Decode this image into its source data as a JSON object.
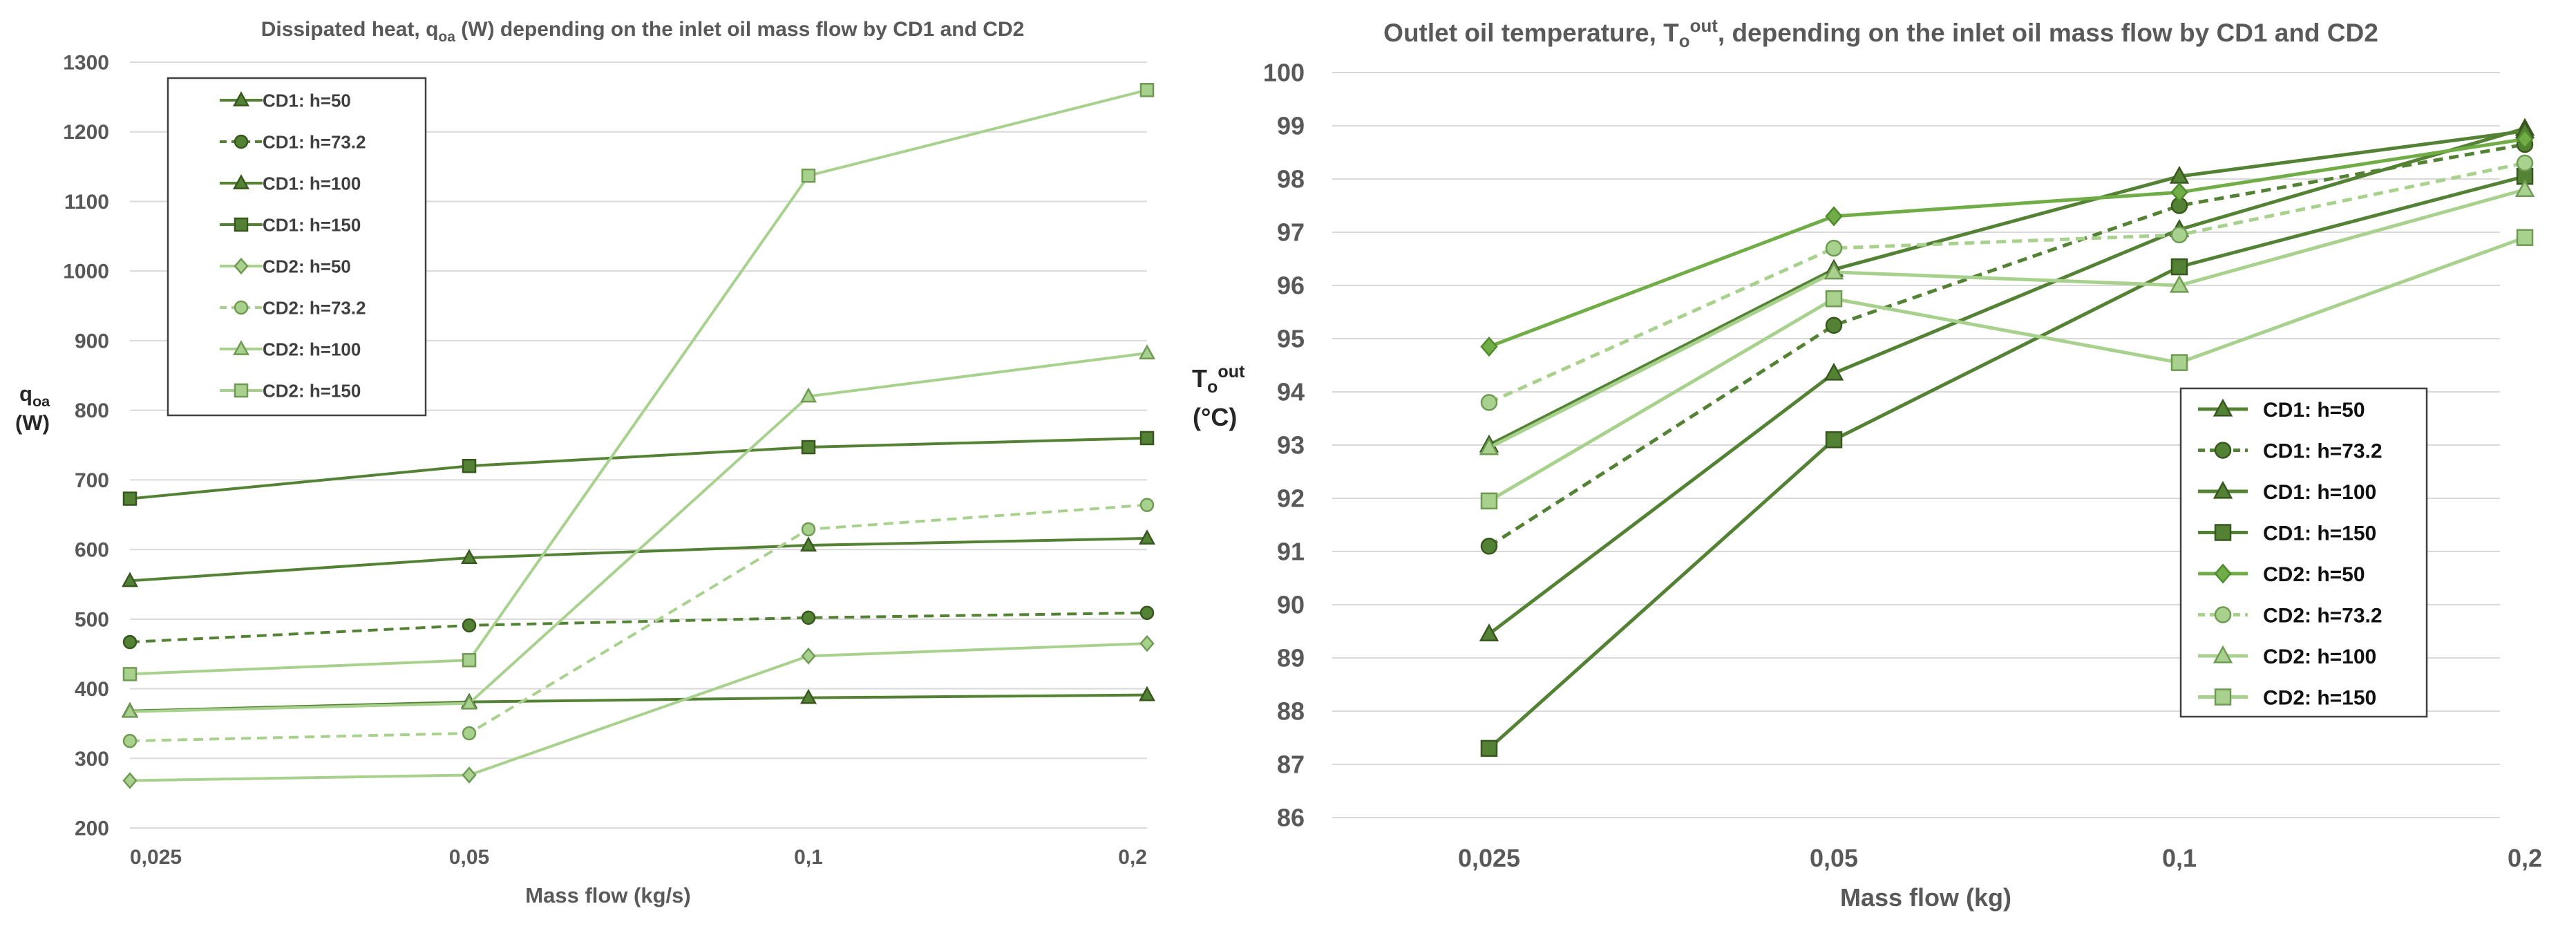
{
  "chart_data": [
    {
      "type": "line",
      "title_parts": [
        "Dissipated heat, q",
        "oa",
        " (W) depending on the inlet oil mass flow by CD1 and CD2"
      ],
      "ylabel_parts": [
        "q",
        "oa"
      ],
      "ylabel_unit": "(W)",
      "xlabel": "Mass flow (kg/s)",
      "categories": [
        "0,025",
        "0,05",
        "0,1",
        "0,2"
      ],
      "ylim": [
        200,
        1300
      ],
      "yticks": [
        200,
        300,
        400,
        500,
        600,
        700,
        800,
        900,
        1000,
        1100,
        1200,
        1300
      ],
      "grid": true,
      "legend_position": "top-left",
      "series": [
        {
          "name": "CD1: h=50",
          "values": [
            368,
            381,
            387,
            391
          ],
          "color": "#548235",
          "dashed": false,
          "marker": "triangle"
        },
        {
          "name": "CD1: h=73.2",
          "values": [
            467,
            491,
            502,
            509
          ],
          "color": "#548235",
          "dashed": true,
          "marker": "circle"
        },
        {
          "name": "CD1: h=100",
          "values": [
            555,
            588,
            606,
            616
          ],
          "color": "#548235",
          "dashed": false,
          "marker": "triangle"
        },
        {
          "name": "CD1: h=150",
          "values": [
            673,
            720,
            747,
            760
          ],
          "color": "#548235",
          "dashed": false,
          "marker": "square"
        },
        {
          "name": "CD2: h=50",
          "values": [
            268,
            276,
            447,
            465
          ],
          "color": "#a9d18e",
          "dashed": false,
          "marker": "diamond"
        },
        {
          "name": "CD2: h=73.2",
          "values": [
            325,
            336,
            629,
            664
          ],
          "color": "#a9d18e",
          "dashed": true,
          "marker": "circle"
        },
        {
          "name": "CD2: h=100",
          "values": [
            367,
            379,
            820,
            882
          ],
          "color": "#a9d18e",
          "dashed": false,
          "marker": "triangle"
        },
        {
          "name": "CD2: h=150",
          "values": [
            421,
            441,
            1137,
            1260
          ],
          "color": "#a9d18e",
          "dashed": false,
          "marker": "square"
        }
      ]
    },
    {
      "type": "line",
      "title_parts": [
        "Outlet oil temperature, T",
        "o",
        "out",
        ", depending on the inlet oil mass flow by CD1 and CD2"
      ],
      "ylabel_parts": [
        "T",
        "o",
        "out"
      ],
      "ylabel_unit": "(°C)",
      "xlabel": "Mass flow (kg)",
      "categories": [
        "0,025",
        "0,05",
        "0,1",
        "0,2"
      ],
      "ylim": [
        86,
        100
      ],
      "yticks": [
        86,
        87,
        88,
        89,
        90,
        91,
        92,
        93,
        94,
        95,
        96,
        97,
        98,
        99,
        100
      ],
      "grid": true,
      "legend_position": "bottom-right",
      "series": [
        {
          "name": "CD1: h=50",
          "values": [
            89.45,
            94.35,
            97.05,
            98.95
          ],
          "color": "#548235",
          "dashed": false,
          "marker": "triangle"
        },
        {
          "name": "CD1: h=73.2",
          "values": [
            91.1,
            95.25,
            97.5,
            98.65
          ],
          "color": "#548235",
          "dashed": true,
          "marker": "circle"
        },
        {
          "name": "CD1: h=100",
          "values": [
            93.0,
            96.3,
            98.05,
            98.9
          ],
          "color": "#548235",
          "dashed": false,
          "marker": "triangle"
        },
        {
          "name": "CD1: h=150",
          "values": [
            87.3,
            93.1,
            96.35,
            98.05
          ],
          "color": "#548235",
          "dashed": false,
          "marker": "square"
        },
        {
          "name": "CD2: h=50",
          "values": [
            94.85,
            97.3,
            97.75,
            98.75
          ],
          "color": "#70ad47",
          "dashed": false,
          "marker": "diamond"
        },
        {
          "name": "CD2: h=73.2",
          "values": [
            93.8,
            96.7,
            96.95,
            98.3
          ],
          "color": "#a9d18e",
          "dashed": true,
          "marker": "circle"
        },
        {
          "name": "CD2: h=100",
          "values": [
            92.95,
            96.25,
            96.0,
            97.8
          ],
          "color": "#a9d18e",
          "dashed": false,
          "marker": "triangle"
        },
        {
          "name": "CD2: h=150",
          "values": [
            91.95,
            95.75,
            94.55,
            96.9
          ],
          "color": "#a9d18e",
          "dashed": false,
          "marker": "square"
        }
      ]
    }
  ]
}
